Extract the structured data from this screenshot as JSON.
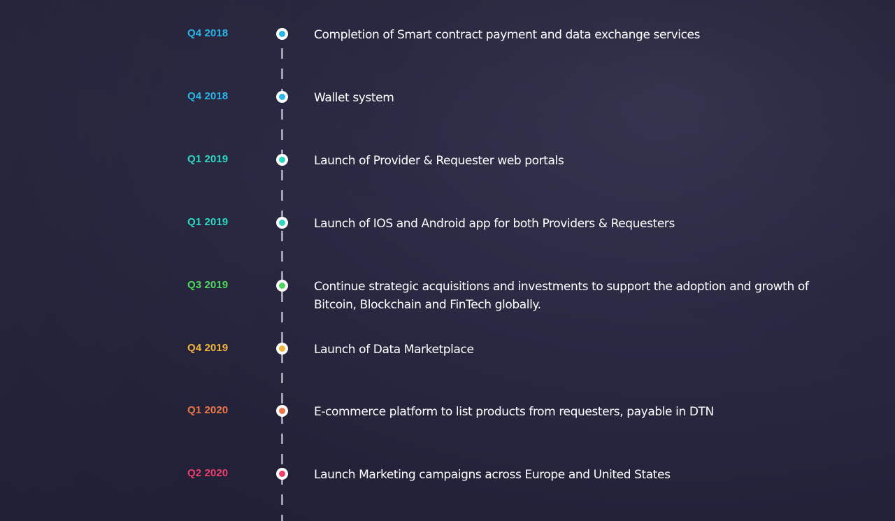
{
  "timeline": {
    "items": [
      {
        "date": "Q4 2018",
        "color": "#29b6e8",
        "text": "Completion of Smart contract payment and data exchange services"
      },
      {
        "date": "Q4 2018",
        "color": "#29b6e8",
        "text": "Wallet system"
      },
      {
        "date": "Q1 2019",
        "color": "#2fd8c2",
        "text": "Launch of Provider & Requester web portals"
      },
      {
        "date": "Q1 2019",
        "color": "#2fd8c2",
        "text": "Launch of IOS and Android app for both Providers & Requesters"
      },
      {
        "date": "Q3 2019",
        "color": "#4fd85e",
        "text": "Continue strategic acquisitions and investments to support the adoption and growth of Bitcoin, Blockchain and FinTech globally."
      },
      {
        "date": "Q4 2019",
        "color": "#f0b73a",
        "text": "Launch of Data Marketplace"
      },
      {
        "date": "Q1 2020",
        "color": "#ee7747",
        "text": "E-commerce platform to list products from requesters, payable in DTN"
      },
      {
        "date": "Q2 2020",
        "color": "#ec3f6b",
        "text": "Launch Marketing campaigns across Europe and United States"
      }
    ]
  }
}
